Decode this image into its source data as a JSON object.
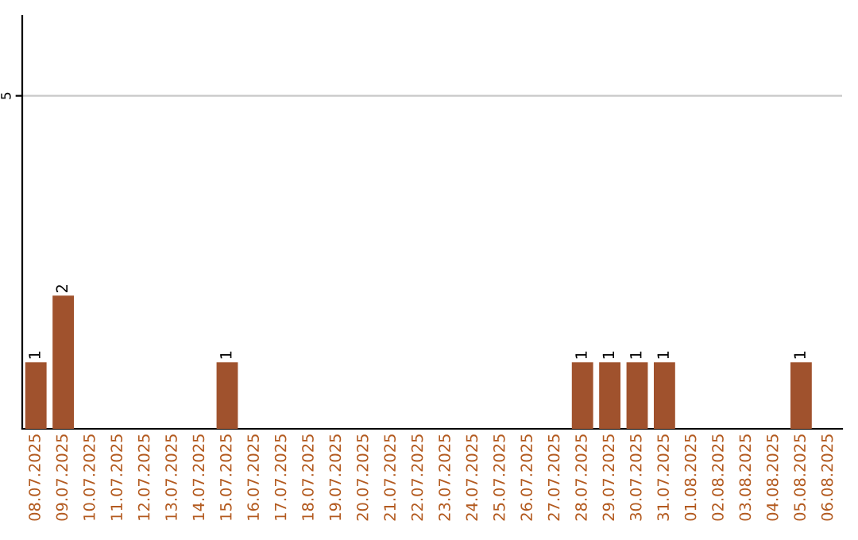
{
  "chart_data": {
    "type": "bar",
    "categories": [
      "08.07.2025",
      "09.07.2025",
      "10.07.2025",
      "11.07.2025",
      "12.07.2025",
      "13.07.2025",
      "14.07.2025",
      "15.07.2025",
      "16.07.2025",
      "17.07.2025",
      "18.07.2025",
      "19.07.2025",
      "20.07.2025",
      "21.07.2025",
      "22.07.2025",
      "23.07.2025",
      "24.07.2025",
      "25.07.2025",
      "26.07.2025",
      "27.07.2025",
      "28.07.2025",
      "29.07.2025",
      "30.07.2025",
      "31.07.2025",
      "01.08.2025",
      "02.08.2025",
      "03.08.2025",
      "04.08.2025",
      "05.08.2025",
      "06.08.2025"
    ],
    "values": [
      1,
      2,
      0,
      0,
      0,
      0,
      0,
      1,
      0,
      0,
      0,
      0,
      0,
      0,
      0,
      0,
      0,
      0,
      0,
      0,
      1,
      1,
      1,
      1,
      0,
      0,
      0,
      0,
      1,
      0
    ],
    "value_labels": [
      "1",
      "2",
      null,
      null,
      null,
      null,
      null,
      "1",
      null,
      null,
      null,
      null,
      null,
      null,
      null,
      null,
      null,
      null,
      null,
      null,
      "1",
      "1",
      "1",
      "1",
      null,
      null,
      null,
      null,
      "1",
      null
    ],
    "color": "#a0522d",
    "ylim": [
      0,
      6.2
    ],
    "yticks": [
      5
    ],
    "grid": "y",
    "legend": false
  }
}
